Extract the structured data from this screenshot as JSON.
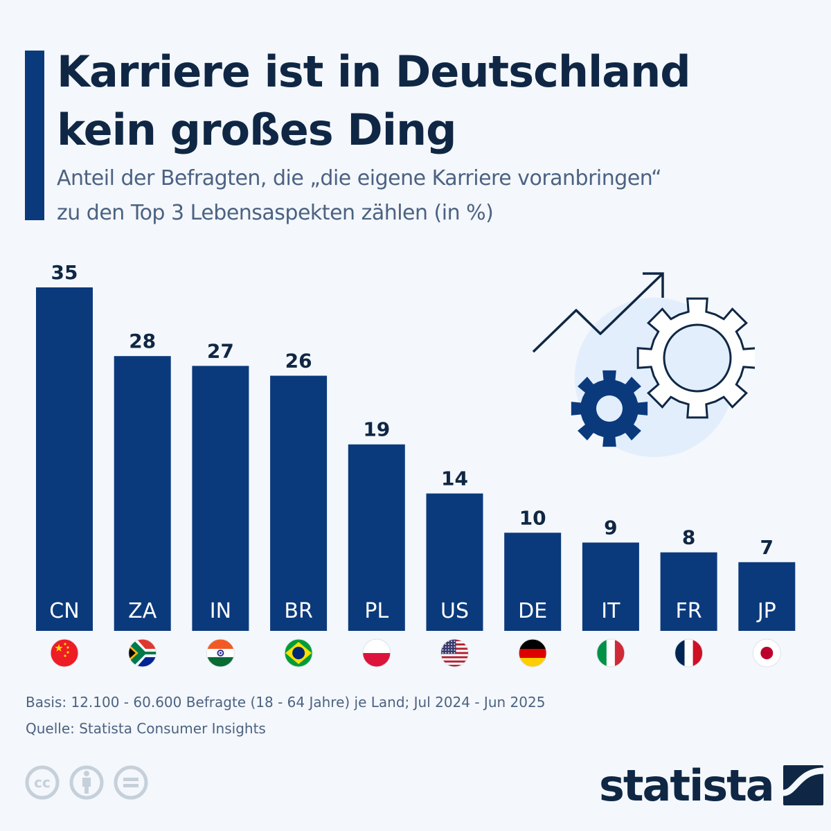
{
  "header": {
    "title_line1": "Karriere ist in Deutschland",
    "title_line2": "kein großes Ding",
    "subtitle_line1": "Anteil der Befragten, die „die eigene Karriere voranbringen“",
    "subtitle_line2": "zu den Top 3 Lebensaspekten zählen (in %)"
  },
  "colors": {
    "bar": "#0b3a7c",
    "value_label": "#0f2744",
    "category_label": "#ffffff",
    "accent": "#0b3a7c"
  },
  "chart_data": {
    "type": "bar",
    "title": "Karriere ist in Deutschland kein großes Ding",
    "subtitle": "Anteil der Befragten, die „die eigene Karriere voranbringen“ zu den Top 3 Lebensaspekten zählen (in %)",
    "categories": [
      "CN",
      "ZA",
      "IN",
      "BR",
      "PL",
      "US",
      "DE",
      "IT",
      "FR",
      "JP"
    ],
    "values": [
      35,
      28,
      27,
      26,
      19,
      14,
      10,
      9,
      8,
      7
    ],
    "value_labels": [
      "35",
      "28",
      "27",
      "26",
      "19",
      "14",
      "10",
      "9",
      "8",
      "7"
    ],
    "flags": [
      "china-flag",
      "south-africa-flag",
      "india-flag",
      "brazil-flag",
      "poland-flag",
      "usa-flag",
      "germany-flag",
      "italy-flag",
      "france-flag",
      "japan-flag"
    ],
    "xlabel": "",
    "ylabel": "",
    "ylim": [
      0,
      35
    ],
    "grid": false,
    "legend": "none"
  },
  "footer": {
    "basis": "Basis: 12.100 - 60.600 Befragte (18 - 64 Jahre) je Land; Jul 2024 - Jun 2025",
    "source": "Quelle: Statista Consumer Insights"
  },
  "license_icons": [
    "cc-icon",
    "attribution-icon",
    "no-derivatives-icon"
  ],
  "brand": {
    "name": "statista"
  }
}
